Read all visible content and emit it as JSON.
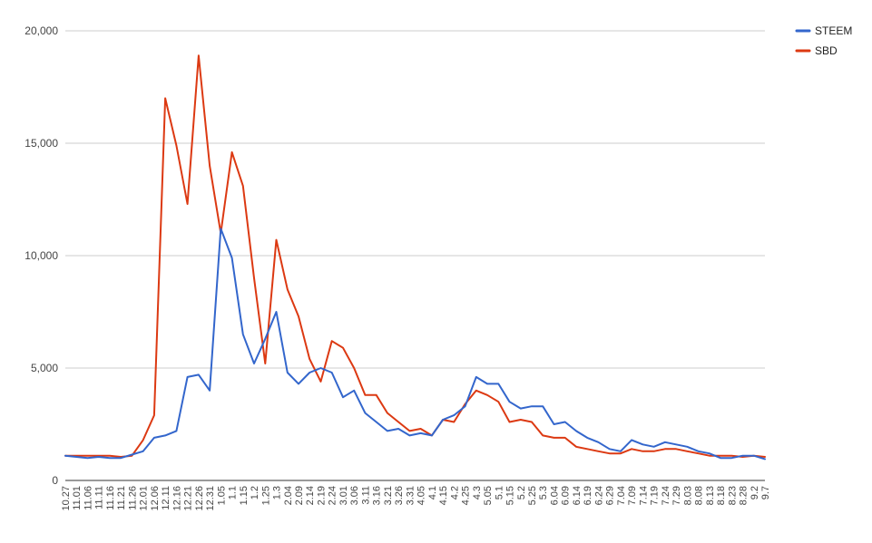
{
  "chart_data": {
    "type": "line",
    "title": "",
    "xlabel": "",
    "ylabel": "",
    "ylim": [
      0,
      20000
    ],
    "y_ticks": [
      0,
      5000,
      10000,
      15000,
      20000
    ],
    "y_tick_labels": [
      "0",
      "5,000",
      "10,000",
      "15,000",
      "20,000"
    ],
    "grid": true,
    "legend_position": "top-right",
    "x": [
      "10.27",
      "11.01",
      "11.06",
      "11.11",
      "11.16",
      "11.21",
      "11.26",
      "12.01",
      "12.06",
      "12.11",
      "12.16",
      "12.21",
      "12.26",
      "12.31",
      "1.05",
      "1.1",
      "1.15",
      "1.2",
      "1.25",
      "1.3",
      "2.04",
      "2.09",
      "2.14",
      "2.19",
      "2.24",
      "3.01",
      "3.06",
      "3.11",
      "3.16",
      "3.21",
      "3.26",
      "3.31",
      "4.05",
      "4.1",
      "4.15",
      "4.2",
      "4.25",
      "4.3",
      "5.05",
      "5.1",
      "5.15",
      "5.2",
      "5.25",
      "5.3",
      "6.04",
      "6.09",
      "6.14",
      "6.19",
      "6.24",
      "6.29",
      "7.04",
      "7.09",
      "7.14",
      "7.19",
      "7.24",
      "7.29",
      "8.03",
      "8.08",
      "8.13",
      "8.18",
      "8.23",
      "8.28",
      "9.2",
      "9.7"
    ],
    "series": [
      {
        "name": "STEEM",
        "color": "#3366cc",
        "values": [
          1100,
          1050,
          1000,
          1050,
          1000,
          1000,
          1150,
          1300,
          1900,
          2000,
          2200,
          4600,
          4700,
          4000,
          11200,
          9900,
          6500,
          5200,
          6300,
          7500,
          4800,
          4300,
          4800,
          5000,
          4800,
          3700,
          4000,
          3000,
          2600,
          2200,
          2300,
          2000,
          2100,
          2000,
          2700,
          2900,
          3300,
          4600,
          4300,
          4300,
          3500,
          3200,
          3300,
          3300,
          2500,
          2600,
          2200,
          1900,
          1700,
          1400,
          1300,
          1800,
          1600,
          1500,
          1700,
          1600,
          1500,
          1300,
          1200,
          1000,
          1000,
          1100,
          1100,
          950
        ]
      },
      {
        "name": "SBD",
        "color": "#dc3912",
        "values": [
          1100,
          1100,
          1100,
          1100,
          1100,
          1050,
          1100,
          1800,
          2900,
          17000,
          14900,
          12300,
          18900,
          14000,
          11000,
          14600,
          13100,
          9000,
          5200,
          10700,
          8500,
          7300,
          5400,
          4400,
          6200,
          5900,
          5000,
          3800,
          3800,
          3000,
          2600,
          2200,
          2300,
          2000,
          2700,
          2600,
          3400,
          4000,
          3800,
          3500,
          2600,
          2700,
          2600,
          2000,
          1900,
          1900,
          1500,
          1400,
          1300,
          1200,
          1200,
          1400,
          1300,
          1300,
          1400,
          1400,
          1300,
          1200,
          1100,
          1100,
          1100,
          1050,
          1100,
          1050
        ]
      }
    ]
  }
}
